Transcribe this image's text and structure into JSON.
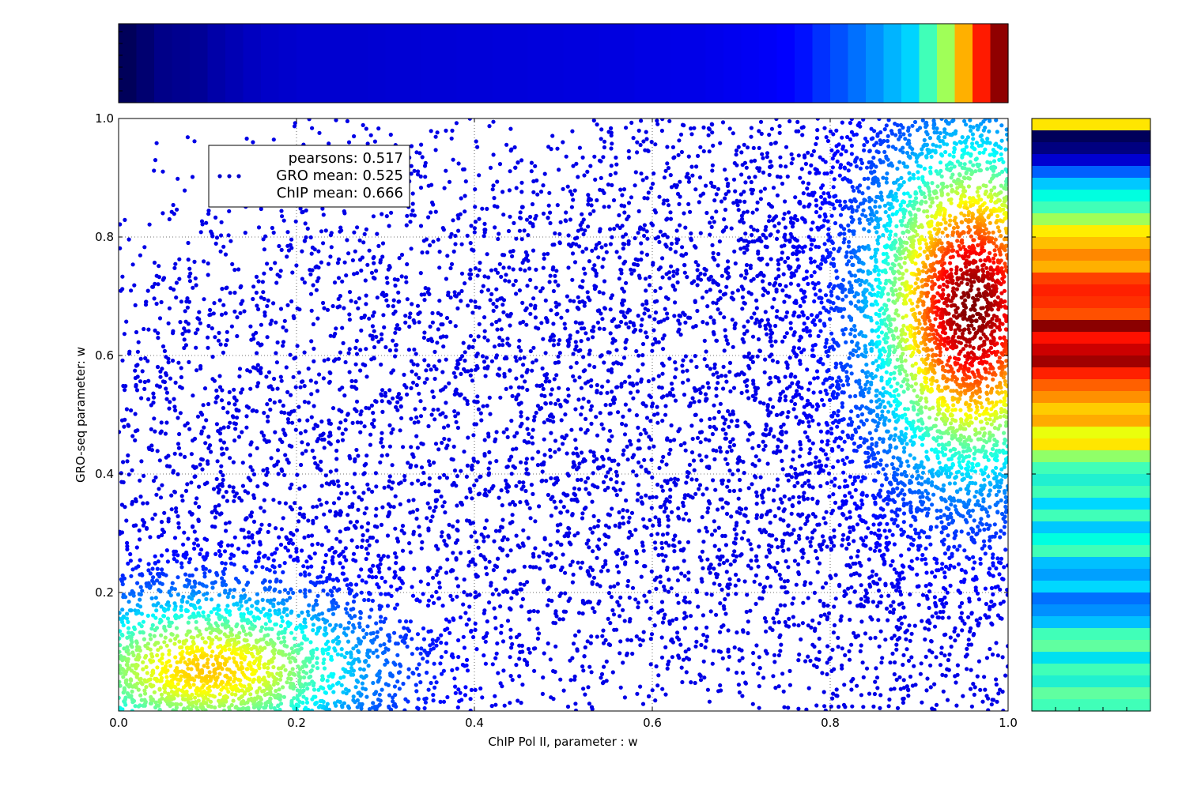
{
  "chart_data": {
    "type": "scatter",
    "title": "",
    "xlabel": "ChIP Pol II, parameter : w",
    "ylabel": "GRO-seq parameter: w",
    "xlim": [
      0,
      1
    ],
    "ylim": [
      0,
      1
    ],
    "x_ticks": [
      0.0,
      0.2,
      0.4,
      0.6,
      0.8,
      1.0
    ],
    "x_tick_labels": [
      "0.0",
      "0.2",
      "0.4",
      "0.6",
      "0.8",
      "1.0"
    ],
    "y_ticks": [
      0.2,
      0.4,
      0.6,
      0.8,
      1.0
    ],
    "y_tick_labels": [
      "0.2",
      "0.4",
      "0.6",
      "0.8",
      "1.0"
    ],
    "grid": true,
    "colormap": "jet",
    "point_color_meaning": "local point density",
    "legend": {
      "placement": "upper-left",
      "marker_color": "#0000cc",
      "lines": [
        "pearsons: 0.517",
        "GRO mean: 0.525",
        "ChIP mean: 0.666"
      ]
    },
    "density_clusters": [
      {
        "x": 0.96,
        "y": 0.68,
        "sx": 0.06,
        "sy": 0.15,
        "weight": 0.45
      },
      {
        "x": 0.1,
        "y": 0.07,
        "sx": 0.1,
        "sy": 0.07,
        "weight": 0.25
      }
    ],
    "x_marginal": {
      "bins": 50,
      "colors": [
        "#00005a",
        "#000070",
        "#000088",
        "#00008f",
        "#000096",
        "#0000a8",
        "#0000b4",
        "#0000c0",
        "#0000c8",
        "#0000cc",
        "#0000d0",
        "#0000d0",
        "#0000d0",
        "#0000d0",
        "#0000d2",
        "#0000d4",
        "#0000d4",
        "#0000d6",
        "#0000d6",
        "#0000d8",
        "#0000d8",
        "#0000da",
        "#0000da",
        "#0000dc",
        "#0000dc",
        "#0000de",
        "#0000de",
        "#0000e0",
        "#0000e0",
        "#0000e4",
        "#0000e4",
        "#0000e8",
        "#0000e8",
        "#0000ec",
        "#0000f0",
        "#0000f4",
        "#0000f8",
        "#0000ff",
        "#0010ff",
        "#0030ff",
        "#0050ff",
        "#0070ff",
        "#0090ff",
        "#00b4ff",
        "#00d4ff",
        "#40ffb8",
        "#a0ff58",
        "#ffb000",
        "#ff1a00",
        "#900000"
      ]
    },
    "y_marginal": {
      "bins": 50,
      "colors_top_to_bottom": [
        "#ffe600",
        "#00005a",
        "#000080",
        "#0000d0",
        "#0060ff",
        "#00c8ff",
        "#00ffe0",
        "#40ffb8",
        "#a0ff58",
        "#ffee00",
        "#ffc000",
        "#ff8800",
        "#ffb000",
        "#ff4000",
        "#ff2000",
        "#ff3000",
        "#ff5000",
        "#8b0000",
        "#ff1000",
        "#cc0000",
        "#a00000",
        "#ff2000",
        "#ff6000",
        "#ff9000",
        "#ffcc00",
        "#ffaa00",
        "#eaff0c",
        "#ffe600",
        "#90ff68",
        "#40ffb8",
        "#20f0d0",
        "#40ffb8",
        "#00d8ff",
        "#40ffb8",
        "#00c8ff",
        "#00ffe0",
        "#40ffb8",
        "#00c0ff",
        "#00a0ff",
        "#00d8ff",
        "#0070ff",
        "#0090ff",
        "#00c0ff",
        "#40ffb8",
        "#60ffa0",
        "#00e0f0",
        "#40ffb8",
        "#20f0d0",
        "#60ffa0",
        "#40ffb8"
      ]
    }
  }
}
